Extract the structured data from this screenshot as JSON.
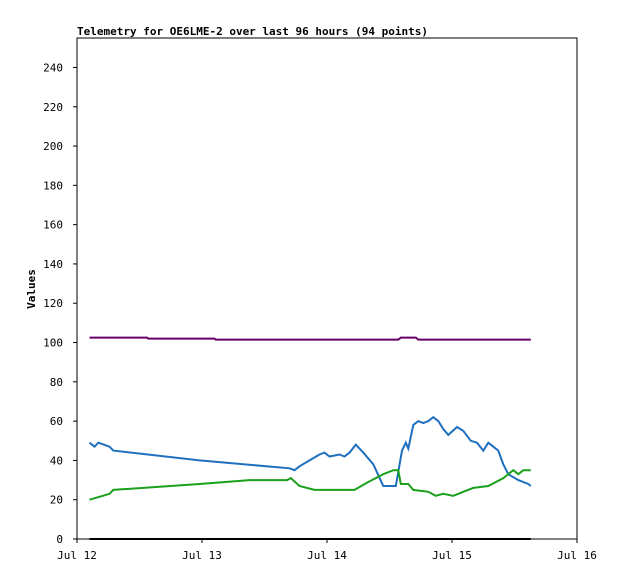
{
  "chart_data": {
    "type": "line",
    "title": "Telemetry for OE6LME-2 over last 96 hours (94 points)",
    "y_label": "Values",
    "xlim": [
      0,
      4
    ],
    "xticks": [
      {
        "value": 0,
        "label": "Jul 12"
      },
      {
        "value": 1,
        "label": "Jul 13"
      },
      {
        "value": 2,
        "label": "Jul 14"
      },
      {
        "value": 3,
        "label": "Jul 15"
      },
      {
        "value": 4,
        "label": "Jul 16"
      }
    ],
    "ylim": [
      0,
      255
    ],
    "yticks": [
      0,
      20,
      40,
      60,
      80,
      100,
      120,
      140,
      160,
      180,
      200,
      220,
      240
    ],
    "grid": false,
    "series": [
      {
        "color": "#660066",
        "x": [
          0.1,
          0.56,
          0.57,
          1.1,
          1.11,
          2.57,
          2.59,
          2.71,
          2.73,
          3.63
        ],
        "values": [
          102.5,
          102.5,
          102,
          102,
          101.5,
          101.5,
          102.5,
          102.5,
          101.5,
          101.5
        ]
      },
      {
        "color": "#1f6fbf",
        "x": [
          0.1,
          0.14,
          0.17,
          0.26,
          0.29,
          0.98,
          1.7,
          1.74,
          1.78,
          1.86,
          1.94,
          1.98,
          2.02,
          2.1,
          2.14,
          2.18,
          2.23,
          2.29,
          2.37,
          2.45,
          2.55,
          2.6,
          2.63,
          2.65,
          2.69,
          2.73,
          2.77,
          2.81,
          2.85,
          2.89,
          2.93,
          2.97,
          3.04,
          3.09,
          3.15,
          3.2,
          3.25,
          3.29,
          3.33,
          3.37,
          3.41,
          3.45,
          3.53,
          3.61,
          3.63
        ],
        "values": [
          49,
          47,
          49,
          47,
          45,
          40,
          36,
          35,
          37,
          40,
          43,
          44,
          42,
          43,
          42,
          44,
          48,
          44,
          38,
          27,
          27,
          45,
          49,
          46,
          58,
          60,
          59,
          60,
          62,
          60,
          56,
          53,
          57,
          55,
          50,
          49,
          45,
          49,
          47,
          45,
          38,
          33,
          30,
          28,
          27
        ]
      },
      {
        "color": "#1aa01a",
        "x": [
          0.1,
          0.18,
          0.26,
          0.29,
          0.98,
          1.38,
          1.68,
          1.71,
          1.78,
          1.9,
          2.22,
          2.33,
          2.45,
          2.53,
          2.57,
          2.59,
          2.65,
          2.69,
          2.81,
          2.87,
          2.93,
          3.01,
          3.09,
          3.17,
          3.29,
          3.41,
          3.49,
          3.53,
          3.57,
          3.63
        ],
        "values": [
          20,
          21.5,
          23,
          25,
          28,
          30,
          30,
          31,
          27,
          25,
          25,
          29,
          33,
          35,
          35,
          28,
          28,
          25,
          24,
          22,
          23,
          22,
          24,
          26,
          27,
          31,
          35,
          33,
          35,
          35
        ]
      },
      {
        "color": "#000000",
        "x": [
          0.1,
          3.63
        ],
        "values": [
          0,
          0
        ]
      }
    ]
  }
}
